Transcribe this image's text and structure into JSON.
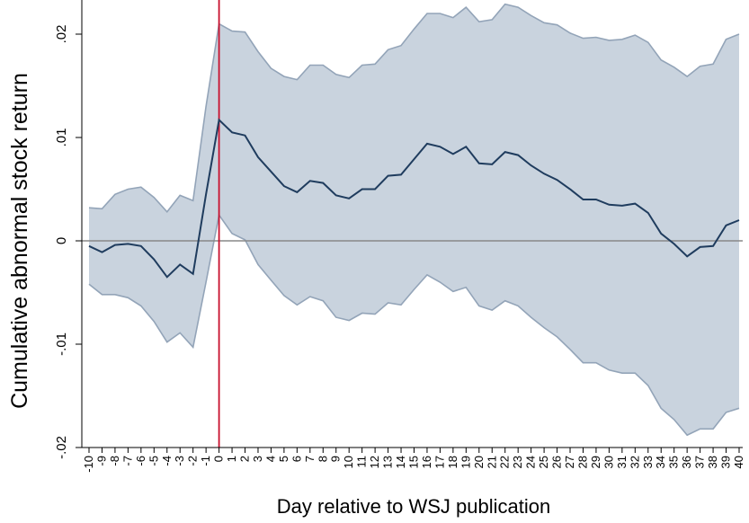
{
  "chart_data": {
    "type": "line",
    "xlabel": "Day relative to WSJ publication",
    "ylabel": "Cumulative abnormal stock return",
    "xlim": [
      -10,
      40
    ],
    "ylim": [
      -0.02,
      0.0225
    ],
    "yticks": [
      -0.02,
      -0.01,
      0,
      0.01,
      0.02
    ],
    "ytick_labels": [
      "-.02",
      "-.01",
      "0",
      ".01",
      ".02"
    ],
    "x": [
      -10,
      -9,
      -8,
      -7,
      -6,
      -5,
      -4,
      -3,
      -2,
      -1,
      0,
      1,
      2,
      3,
      4,
      5,
      6,
      7,
      8,
      9,
      10,
      11,
      12,
      13,
      14,
      15,
      16,
      17,
      18,
      19,
      20,
      21,
      22,
      23,
      24,
      25,
      26,
      27,
      28,
      29,
      30,
      31,
      32,
      33,
      34,
      35,
      36,
      37,
      38,
      39,
      40
    ],
    "series": [
      {
        "role": "estimate",
        "values": [
          -0.0005,
          -0.0011,
          -0.0004,
          -0.0003,
          -0.0005,
          -0.0018,
          -0.0035,
          -0.0023,
          -0.0032,
          0.0045,
          0.0117,
          0.0105,
          0.0102,
          0.0081,
          0.0067,
          0.0053,
          0.0047,
          0.0058,
          0.0056,
          0.0044,
          0.0041,
          0.005,
          0.005,
          0.0063,
          0.0064,
          0.0079,
          0.0094,
          0.0091,
          0.0084,
          0.0091,
          0.0075,
          0.0074,
          0.0086,
          0.0083,
          0.0073,
          0.0065,
          0.0059,
          0.005,
          0.004,
          0.004,
          0.0035,
          0.0034,
          0.0036,
          0.0027,
          0.0007,
          -0.0003,
          -0.0015,
          -0.0006,
          -0.0005,
          0.0015,
          0.002
        ],
        "color": "#1f3c5e"
      },
      {
        "role": "upper-bound",
        "values": [
          0.0032,
          0.0031,
          0.0045,
          0.005,
          0.0052,
          0.0042,
          0.0028,
          0.0044,
          0.0039,
          0.013,
          0.021,
          0.0203,
          0.0202,
          0.0183,
          0.0167,
          0.0159,
          0.0156,
          0.017,
          0.017,
          0.0161,
          0.0158,
          0.017,
          0.0171,
          0.0185,
          0.0189,
          0.0205,
          0.022,
          0.022,
          0.0216,
          0.0226,
          0.0212,
          0.0214,
          0.0229,
          0.0226,
          0.0218,
          0.0211,
          0.0209,
          0.0201,
          0.0196,
          0.0197,
          0.0194,
          0.0195,
          0.0199,
          0.0192,
          0.0175,
          0.0168,
          0.0159,
          0.0169,
          0.0171,
          0.0195,
          0.02
        ],
        "color": "#93a4b8"
      },
      {
        "role": "lower-bound",
        "values": [
          -0.0042,
          -0.0052,
          -0.0052,
          -0.0055,
          -0.0063,
          -0.0078,
          -0.0098,
          -0.0089,
          -0.0103,
          -0.004,
          0.0025,
          0.0007,
          0.0001,
          -0.0023,
          -0.0038,
          -0.0053,
          -0.0062,
          -0.0054,
          -0.0058,
          -0.0074,
          -0.0077,
          -0.007,
          -0.0071,
          -0.006,
          -0.0062,
          -0.0047,
          -0.0033,
          -0.004,
          -0.0049,
          -0.0045,
          -0.0063,
          -0.0067,
          -0.0058,
          -0.0063,
          -0.0074,
          -0.0084,
          -0.0093,
          -0.0105,
          -0.0118,
          -0.0118,
          -0.0125,
          -0.0128,
          -0.0128,
          -0.014,
          -0.0162,
          -0.0173,
          -0.0188,
          -0.0182,
          -0.0182,
          -0.0166,
          -0.0162
        ],
        "color": "#93a4b8"
      }
    ],
    "band_fill": "#c9d3de",
    "zero_line_color": "#888888",
    "event_line": {
      "x": 0,
      "color": "#c8102e"
    },
    "grid": false,
    "legend": "none"
  }
}
